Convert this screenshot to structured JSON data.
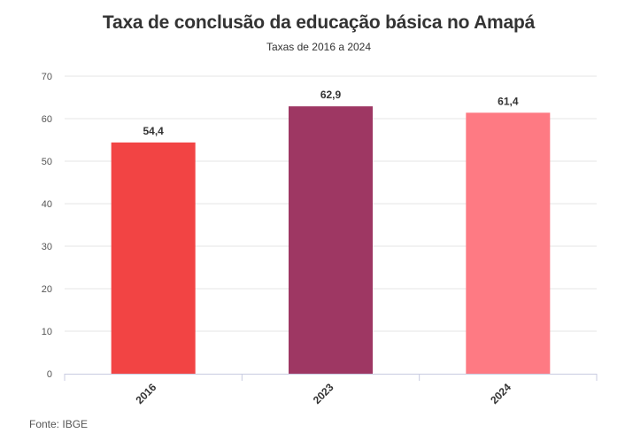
{
  "chart_data": {
    "type": "bar",
    "title": "Taxa de conclusão da educação básica no Amapá",
    "subtitle": "Taxas de 2016 a 2024",
    "categories": [
      "2016",
      "2023",
      "2024"
    ],
    "values": [
      54.4,
      62.9,
      61.4
    ],
    "value_labels": [
      "54,4",
      "62,9",
      "61,4"
    ],
    "bar_colors": [
      "#f24444",
      "#9e3763",
      "#fe7a83"
    ],
    "ylim": [
      0,
      70
    ],
    "yticks": [
      0,
      10,
      20,
      30,
      40,
      50,
      60,
      70
    ],
    "grid": true,
    "xlabel": "",
    "ylabel": ""
  },
  "source": "Fonte: IBGE"
}
